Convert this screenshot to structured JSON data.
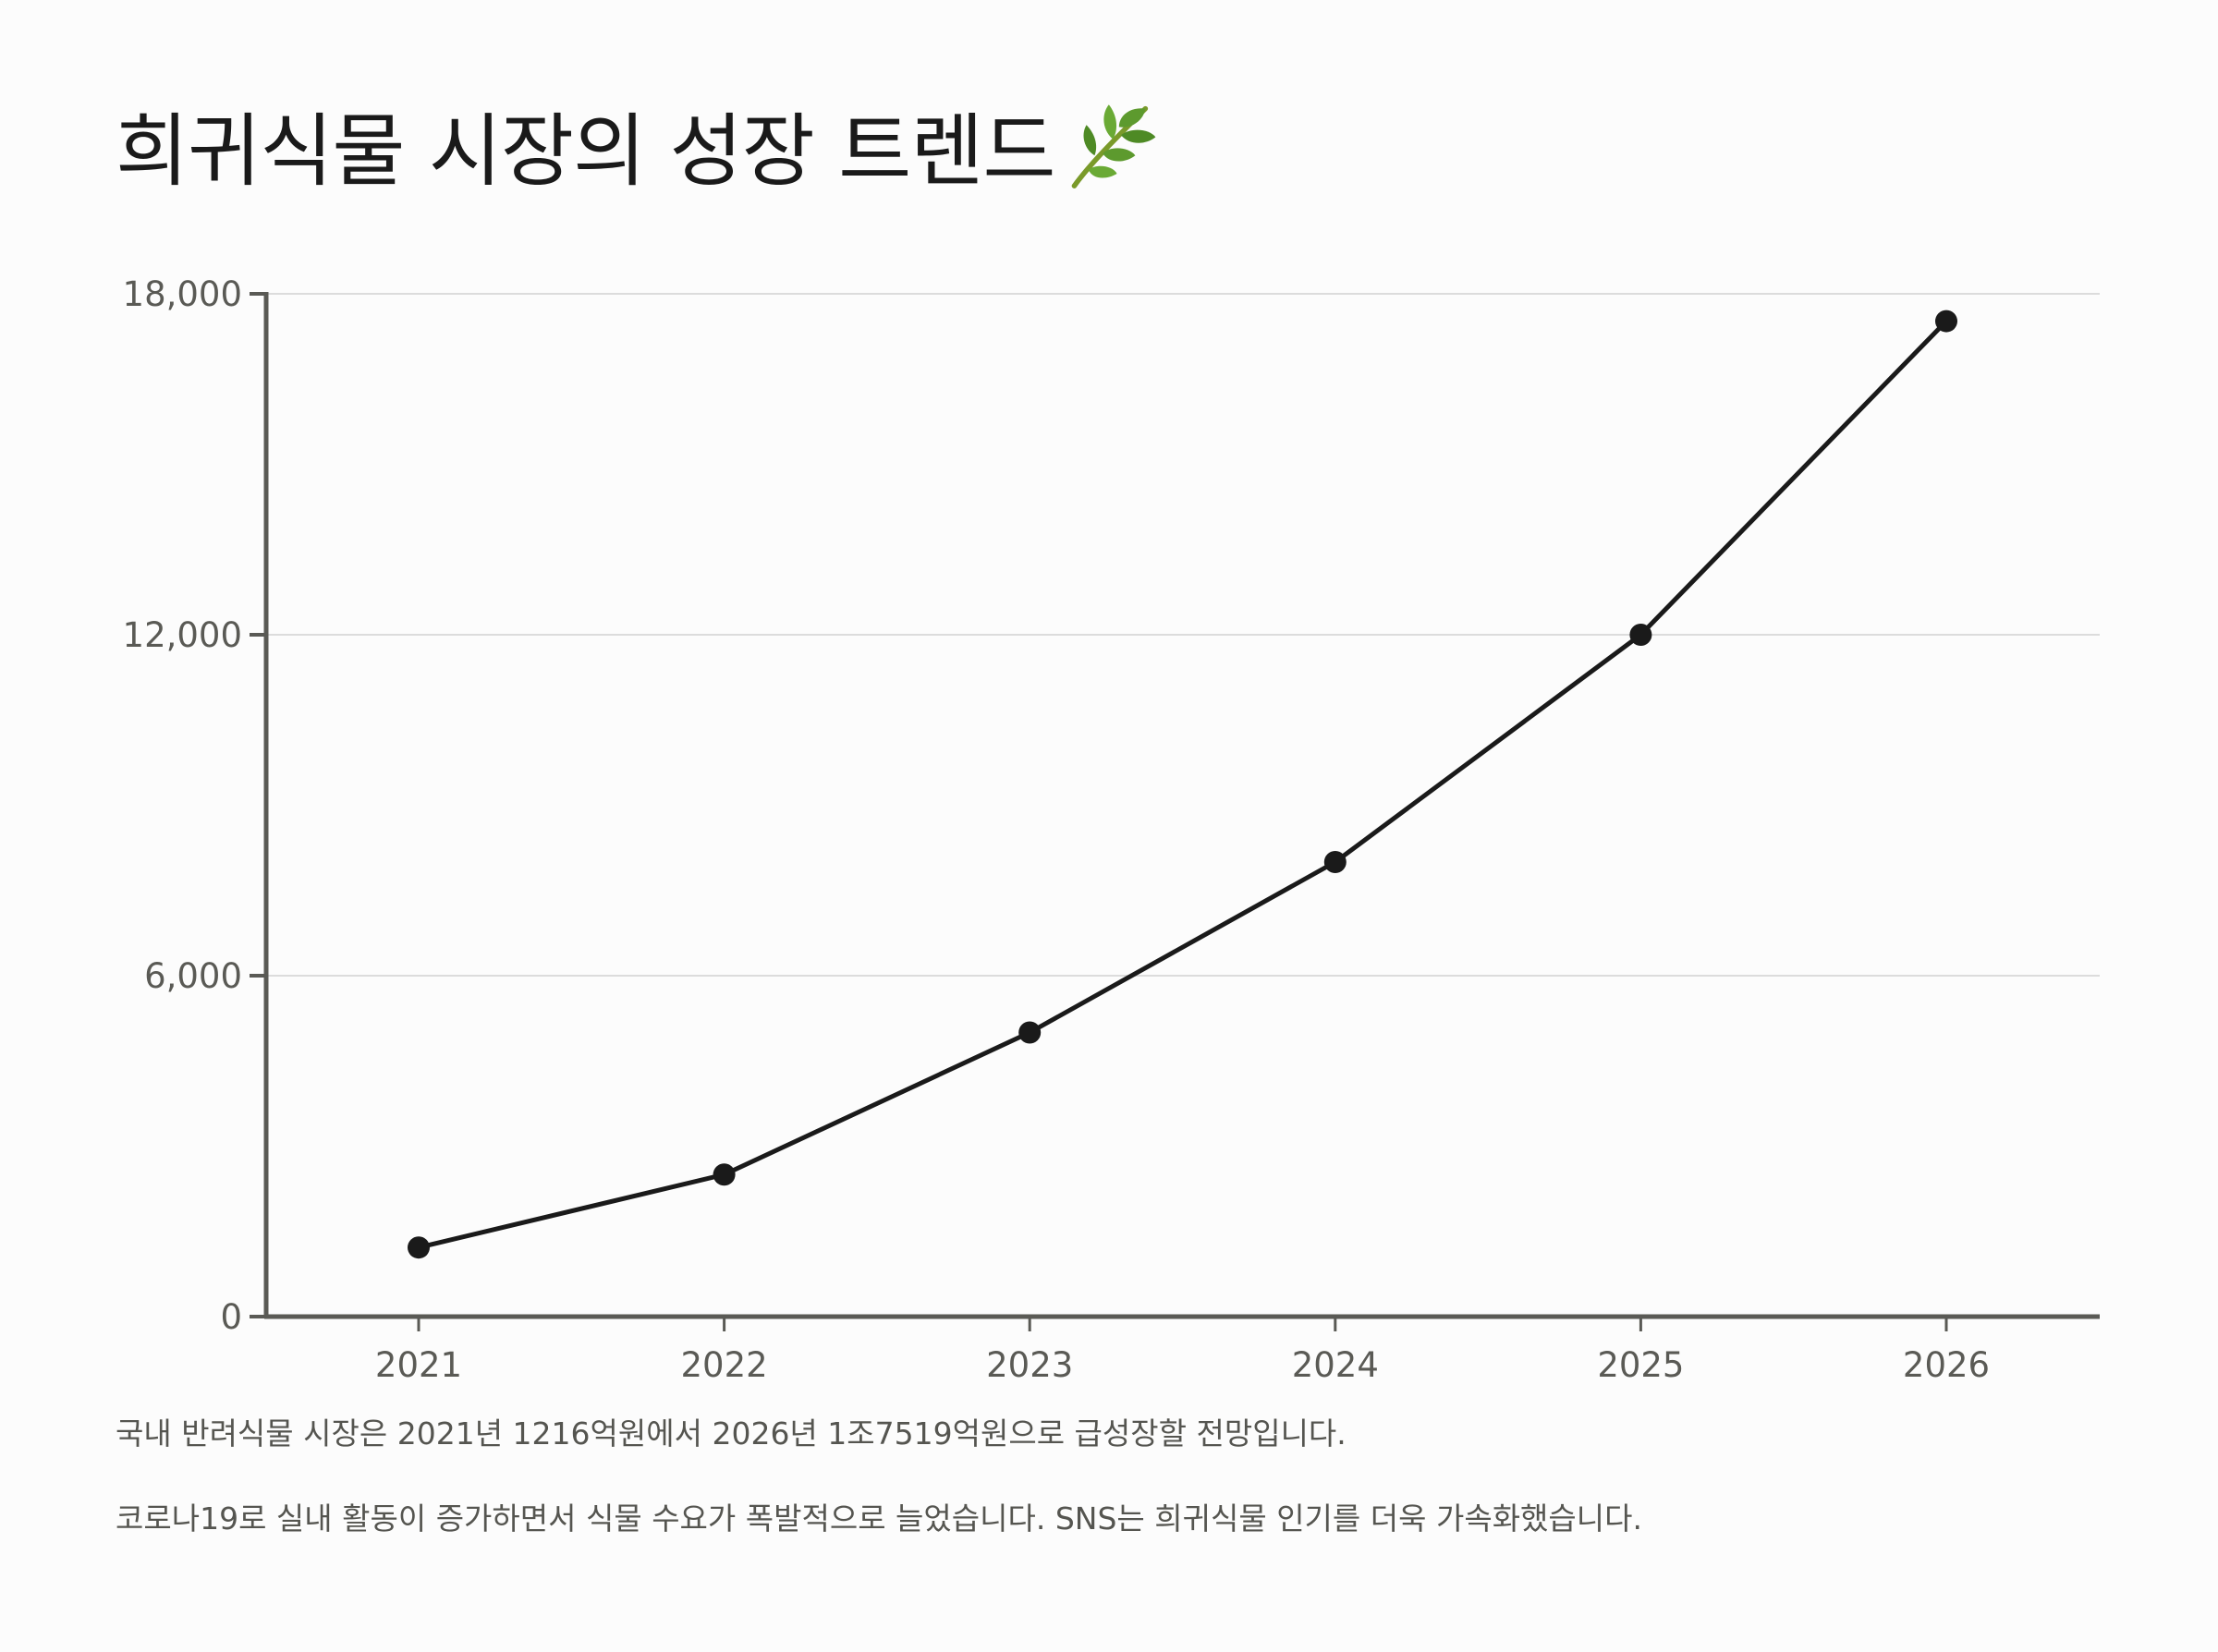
{
  "title": "희귀식물 시장의 성장 트렌드",
  "title_icon": "herb-leaf-icon",
  "notes": [
    "국내 반려식물 시장은 2021년 1216억원에서 2026년 1조7519억원으로 급성장할 전망입니다.",
    "코로나19로 실내 활동이 증가하면서 식물 수요가 폭발적으로 늘었습니다. SNS는 희귀식물 인기를 더욱 가속화했습니다."
  ],
  "colors": {
    "line": "#1a1a1a",
    "axis": "#5a5a55",
    "grid": "#dcdcdc",
    "background": "#fcfcfc"
  },
  "chart_data": {
    "type": "line",
    "title": "희귀식물 시장의 성장 트렌드",
    "xlabel": "",
    "ylabel": "",
    "x": [
      "2021",
      "2022",
      "2023",
      "2024",
      "2025",
      "2026"
    ],
    "series": [
      {
        "values": [
          1216,
          2500,
          5000,
          8000,
          12000,
          17519
        ]
      }
    ],
    "ylim": [
      0,
      18000
    ],
    "yticks": [
      0,
      6000,
      12000,
      18000
    ],
    "ytick_labels": [
      "0",
      "6,000",
      "12,000",
      "18,000"
    ],
    "grid": "horizontal",
    "legend": "none"
  }
}
